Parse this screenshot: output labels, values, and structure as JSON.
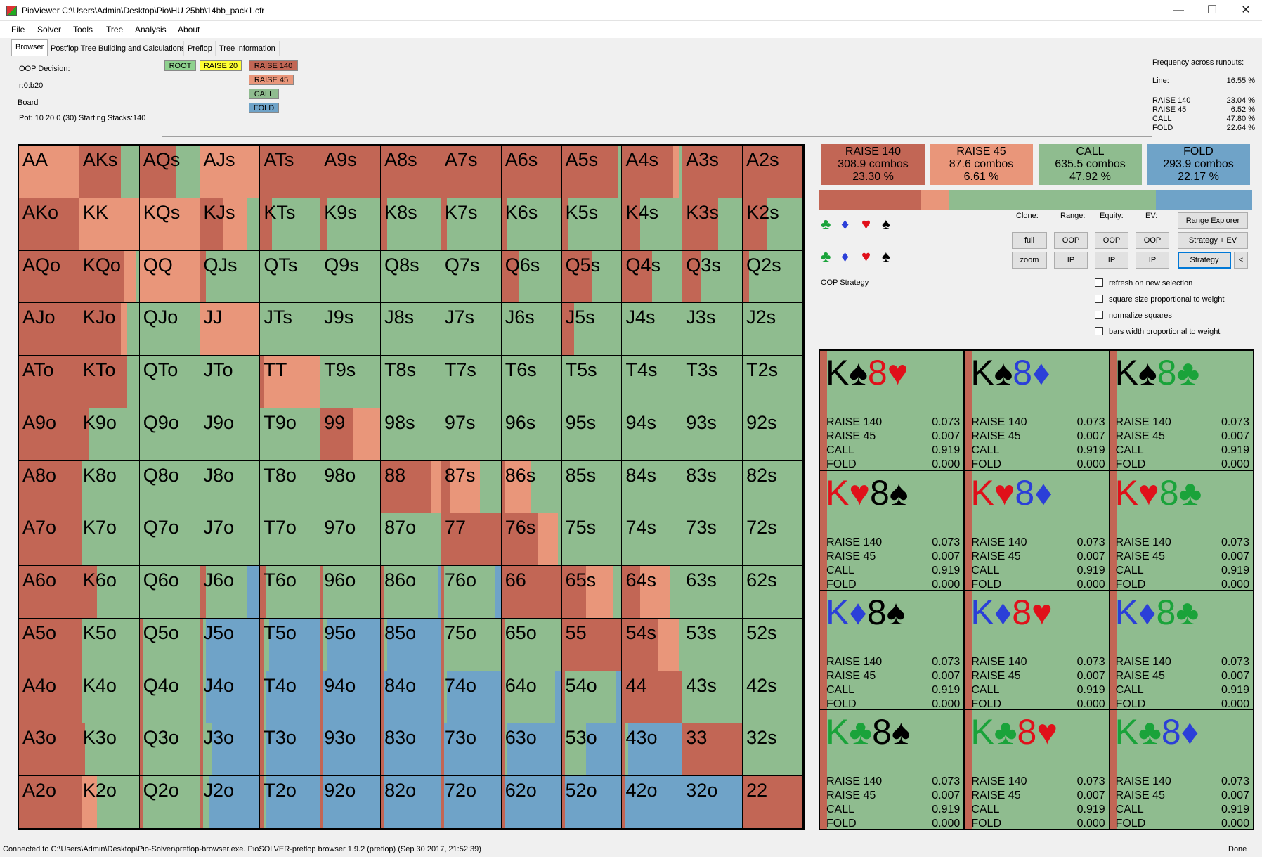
{
  "window": {
    "title": "PioViewer C:\\Users\\Admin\\Desktop\\Pio\\HU 25bb\\14bb_pack1.cfr",
    "minimize": "—",
    "maximize": "☐",
    "close": "✕"
  },
  "menu": [
    "File",
    "Solver",
    "Tools",
    "Tree",
    "Analysis",
    "About"
  ],
  "tabs": [
    "Browser",
    "Postflop Tree Building and Calculations",
    "Preflop",
    "Tree information"
  ],
  "info": {
    "decision": "OOP Decision:",
    "line": "r:0:b20",
    "board": "Board",
    "pot": "Pot: 10 20 0 (30) Starting Stacks:140"
  },
  "tree_nodes": {
    "root": "ROOT",
    "raise20": "RAISE 20",
    "raise140": "RAISE 140",
    "raise45": "RAISE 45",
    "call": "CALL",
    "fold": "FOLD"
  },
  "frequency": {
    "title": "Frequency across runouts:",
    "line_label": "Line:",
    "line_value": "16.55 %",
    "rows": [
      {
        "label": "RAISE 140",
        "value": "23.04 %"
      },
      {
        "label": "RAISE 45",
        "value": "6.52 %"
      },
      {
        "label": "CALL",
        "value": "47.80 %"
      },
      {
        "label": "FOLD",
        "value": "22.64 %"
      }
    ]
  },
  "colors": {
    "raise140": "#c26655",
    "raise45": "#e9967a",
    "call": "#8fbc8f",
    "fold": "#6fa3c8",
    "root_node": "#8fd18f",
    "raise20_node": "#ffff33"
  },
  "actions": [
    {
      "name": "RAISE 140",
      "combos": "308.9 combos",
      "pct": "23.30 %",
      "freq": 23.3,
      "color": "#c26655"
    },
    {
      "name": "RAISE 45",
      "combos": "87.6 combos",
      "pct": "6.61 %",
      "freq": 6.61,
      "color": "#e9967a"
    },
    {
      "name": "CALL",
      "combos": "635.5 combos",
      "pct": "47.92 %",
      "freq": 47.92,
      "color": "#8fbc8f"
    },
    {
      "name": "FOLD",
      "combos": "293.9 combos",
      "pct": "22.17 %",
      "freq": 22.17,
      "color": "#6fa3c8"
    }
  ],
  "controls": {
    "clone": "Clone:",
    "range": "Range:",
    "equity": "Equity:",
    "ev": "EV:",
    "full": "full",
    "zoom": "zoom",
    "oop": "OOP",
    "ip": "IP",
    "range_explorer": "Range Explorer",
    "strategy_ev": "Strategy + EV",
    "strategy": "Strategy",
    "back": "<",
    "oop_strategy": "OOP Strategy",
    "refresh": "refresh on new selection",
    "square_size": "square size proportional to weight",
    "normalize": "normalize squares",
    "bars_width": "bars width proportional to weight"
  },
  "suits": [
    "♣",
    "♦",
    "♥",
    "♠"
  ],
  "suit_colors": [
    "#1aa33a",
    "#2b3fd8",
    "#e0101a",
    "#000000"
  ],
  "hands": [
    "AA",
    "AKs",
    "AQs",
    "AJs",
    "ATs",
    "A9s",
    "A8s",
    "A7s",
    "A6s",
    "A5s",
    "A4s",
    "A3s",
    "A2s",
    "AKo",
    "KK",
    "KQs",
    "KJs",
    "KTs",
    "K9s",
    "K8s",
    "K7s",
    "K6s",
    "K5s",
    "K4s",
    "K3s",
    "K2s",
    "AQo",
    "KQo",
    "QQ",
    "QJs",
    "QTs",
    "Q9s",
    "Q8s",
    "Q7s",
    "Q6s",
    "Q5s",
    "Q4s",
    "Q3s",
    "Q2s",
    "AJo",
    "KJo",
    "QJo",
    "JJ",
    "JTs",
    "J9s",
    "J8s",
    "J7s",
    "J6s",
    "J5s",
    "J4s",
    "J3s",
    "J2s",
    "ATo",
    "KTo",
    "QTo",
    "JTo",
    "TT",
    "T9s",
    "T8s",
    "T7s",
    "T6s",
    "T5s",
    "T4s",
    "T3s",
    "T2s",
    "A9o",
    "K9o",
    "Q9o",
    "J9o",
    "T9o",
    "99",
    "98s",
    "97s",
    "96s",
    "95s",
    "94s",
    "93s",
    "92s",
    "A8o",
    "K8o",
    "Q8o",
    "J8o",
    "T8o",
    "98o",
    "88",
    "87s",
    "86s",
    "85s",
    "84s",
    "83s",
    "82s",
    "A7o",
    "K7o",
    "Q7o",
    "J7o",
    "T7o",
    "97o",
    "87o",
    "77",
    "76s",
    "75s",
    "74s",
    "73s",
    "72s",
    "A6o",
    "K6o",
    "Q6o",
    "J6o",
    "T6o",
    "96o",
    "86o",
    "76o",
    "66",
    "65s",
    "64s",
    "63s",
    "62s",
    "A5o",
    "K5o",
    "Q5o",
    "J5o",
    "T5o",
    "95o",
    "85o",
    "75o",
    "65o",
    "55",
    "54s",
    "53s",
    "52s",
    "A4o",
    "K4o",
    "Q4o",
    "J4o",
    "T4o",
    "94o",
    "84o",
    "74o",
    "64o",
    "54o",
    "44",
    "43s",
    "42s",
    "A3o",
    "K3o",
    "Q3o",
    "J3o",
    "T3o",
    "93o",
    "83o",
    "73o",
    "63o",
    "53o",
    "43o",
    "33",
    "32s",
    "A2o",
    "K2o",
    "Q2o",
    "J2o",
    "T2o",
    "92o",
    "82o",
    "72o",
    "62o",
    "52o",
    "42o",
    "32o",
    "22"
  ],
  "hand_strategies": [
    [
      0,
      100,
      0,
      0
    ],
    [
      70,
      0,
      30,
      0
    ],
    [
      60,
      0,
      40,
      0
    ],
    [
      0,
      100,
      0,
      0
    ],
    [
      100,
      0,
      0,
      0
    ],
    [
      100,
      0,
      0,
      0
    ],
    [
      100,
      0,
      0,
      0
    ],
    [
      100,
      0,
      0,
      0
    ],
    [
      100,
      0,
      0,
      0
    ],
    [
      95,
      0,
      5,
      0
    ],
    [
      85,
      10,
      5,
      0
    ],
    [
      100,
      0,
      0,
      0
    ],
    [
      100,
      0,
      0,
      0
    ],
    [
      100,
      0,
      0,
      0
    ],
    [
      0,
      100,
      0,
      0
    ],
    [
      0,
      100,
      0,
      0
    ],
    [
      40,
      40,
      20,
      0
    ],
    [
      20,
      0,
      80,
      0
    ],
    [
      10,
      0,
      90,
      0
    ],
    [
      10,
      0,
      90,
      0
    ],
    [
      10,
      0,
      90,
      0
    ],
    [
      10,
      0,
      90,
      0
    ],
    [
      10,
      0,
      90,
      0
    ],
    [
      30,
      0,
      70,
      0
    ],
    [
      60,
      0,
      40,
      0
    ],
    [
      40,
      0,
      60,
      0
    ],
    [
      100,
      0,
      0,
      0
    ],
    [
      75,
      20,
      5,
      0
    ],
    [
      0,
      100,
      0,
      0
    ],
    [
      10,
      0,
      90,
      0
    ],
    [
      0,
      0,
      100,
      0
    ],
    [
      0,
      0,
      100,
      0
    ],
    [
      0,
      0,
      100,
      0
    ],
    [
      0,
      0,
      100,
      0
    ],
    [
      30,
      0,
      70,
      0
    ],
    [
      50,
      0,
      50,
      0
    ],
    [
      50,
      0,
      50,
      0
    ],
    [
      30,
      0,
      70,
      0
    ],
    [
      10,
      0,
      90,
      0
    ],
    [
      100,
      0,
      0,
      0
    ],
    [
      70,
      10,
      20,
      0
    ],
    [
      0,
      0,
      100,
      0
    ],
    [
      0,
      100,
      0,
      0
    ],
    [
      0,
      0,
      100,
      0
    ],
    [
      0,
      0,
      100,
      0
    ],
    [
      0,
      0,
      100,
      0
    ],
    [
      0,
      0,
      100,
      0
    ],
    [
      0,
      0,
      100,
      0
    ],
    [
      20,
      0,
      80,
      0
    ],
    [
      0,
      0,
      100,
      0
    ],
    [
      0,
      0,
      100,
      0
    ],
    [
      0,
      0,
      100,
      0
    ],
    [
      100,
      0,
      0,
      0
    ],
    [
      80,
      0,
      20,
      0
    ],
    [
      0,
      0,
      100,
      0
    ],
    [
      0,
      0,
      100,
      0
    ],
    [
      5,
      95,
      0,
      0
    ],
    [
      0,
      0,
      100,
      0
    ],
    [
      0,
      0,
      100,
      0
    ],
    [
      0,
      0,
      100,
      0
    ],
    [
      0,
      0,
      100,
      0
    ],
    [
      0,
      0,
      100,
      0
    ],
    [
      0,
      0,
      100,
      0
    ],
    [
      0,
      0,
      100,
      0
    ],
    [
      0,
      0,
      100,
      0
    ],
    [
      100,
      0,
      0,
      0
    ],
    [
      15,
      0,
      85,
      0
    ],
    [
      0,
      0,
      100,
      0
    ],
    [
      0,
      0,
      100,
      0
    ],
    [
      0,
      0,
      100,
      0
    ],
    [
      55,
      45,
      0,
      0
    ],
    [
      0,
      0,
      100,
      0
    ],
    [
      0,
      0,
      100,
      0
    ],
    [
      0,
      0,
      100,
      0
    ],
    [
      0,
      0,
      100,
      0
    ],
    [
      0,
      0,
      100,
      0
    ],
    [
      0,
      0,
      100,
      0
    ],
    [
      0,
      0,
      100,
      0
    ],
    [
      100,
      0,
      0,
      0
    ],
    [
      5,
      0,
      95,
      0
    ],
    [
      0,
      0,
      100,
      0
    ],
    [
      0,
      0,
      100,
      0
    ],
    [
      0,
      0,
      100,
      0
    ],
    [
      0,
      0,
      100,
      0
    ],
    [
      85,
      15,
      0,
      0
    ],
    [
      15,
      50,
      35,
      0
    ],
    [
      5,
      45,
      50,
      0
    ],
    [
      0,
      0,
      100,
      0
    ],
    [
      0,
      0,
      100,
      0
    ],
    [
      0,
      0,
      100,
      0
    ],
    [
      0,
      0,
      100,
      0
    ],
    [
      100,
      0,
      0,
      0
    ],
    [
      5,
      0,
      95,
      0
    ],
    [
      0,
      0,
      100,
      0
    ],
    [
      0,
      0,
      100,
      0
    ],
    [
      0,
      0,
      100,
      0
    ],
    [
      0,
      0,
      100,
      0
    ],
    [
      0,
      0,
      100,
      0
    ],
    [
      100,
      0,
      0,
      0
    ],
    [
      60,
      35,
      5,
      0
    ],
    [
      0,
      0,
      100,
      0
    ],
    [
      0,
      0,
      100,
      0
    ],
    [
      0,
      0,
      100,
      0
    ],
    [
      0,
      0,
      100,
      0
    ],
    [
      100,
      0,
      0,
      0
    ],
    [
      30,
      0,
      70,
      0
    ],
    [
      0,
      0,
      100,
      0
    ],
    [
      10,
      0,
      70,
      20
    ],
    [
      10,
      0,
      90,
      0
    ],
    [
      5,
      0,
      95,
      0
    ],
    [
      5,
      0,
      90,
      5
    ],
    [
      5,
      0,
      85,
      10
    ],
    [
      100,
      0,
      0,
      0
    ],
    [
      40,
      45,
      15,
      0
    ],
    [
      30,
      50,
      20,
      0
    ],
    [
      0,
      0,
      100,
      0
    ],
    [
      0,
      0,
      100,
      0
    ],
    [
      100,
      0,
      0,
      0
    ],
    [
      5,
      0,
      95,
      0
    ],
    [
      5,
      0,
      95,
      0
    ],
    [
      5,
      0,
      5,
      90
    ],
    [
      5,
      0,
      10,
      85
    ],
    [
      5,
      0,
      5,
      90
    ],
    [
      5,
      0,
      5,
      90
    ],
    [
      5,
      0,
      95,
      0
    ],
    [
      5,
      0,
      95,
      0
    ],
    [
      100,
      0,
      0,
      0
    ],
    [
      60,
      35,
      5,
      0
    ],
    [
      0,
      0,
      100,
      0
    ],
    [
      0,
      0,
      100,
      0
    ],
    [
      100,
      0,
      0,
      0
    ],
    [
      5,
      0,
      95,
      0
    ],
    [
      5,
      0,
      95,
      0
    ],
    [
      5,
      0,
      5,
      90
    ],
    [
      5,
      0,
      5,
      90
    ],
    [
      5,
      0,
      0,
      95
    ],
    [
      5,
      0,
      0,
      95
    ],
    [
      5,
      0,
      5,
      90
    ],
    [
      5,
      0,
      85,
      10
    ],
    [
      5,
      0,
      85,
      10
    ],
    [
      100,
      0,
      0,
      0
    ],
    [
      0,
      0,
      100,
      0
    ],
    [
      0,
      0,
      100,
      0
    ],
    [
      100,
      0,
      0,
      0
    ],
    [
      10,
      0,
      90,
      0
    ],
    [
      5,
      0,
      95,
      0
    ],
    [
      5,
      0,
      15,
      80
    ],
    [
      5,
      0,
      5,
      90
    ],
    [
      5,
      0,
      0,
      95
    ],
    [
      5,
      0,
      0,
      95
    ],
    [
      5,
      0,
      0,
      95
    ],
    [
      5,
      0,
      5,
      90
    ],
    [
      5,
      0,
      35,
      60
    ],
    [
      5,
      0,
      5,
      90
    ],
    [
      100,
      0,
      0,
      0
    ],
    [
      0,
      0,
      100,
      0
    ],
    [
      100,
      0,
      0,
      0
    ],
    [
      5,
      25,
      70,
      0
    ],
    [
      5,
      0,
      95,
      0
    ],
    [
      5,
      0,
      10,
      85
    ],
    [
      5,
      0,
      5,
      90
    ],
    [
      5,
      0,
      0,
      95
    ],
    [
      5,
      0,
      0,
      95
    ],
    [
      5,
      0,
      0,
      95
    ],
    [
      5,
      0,
      0,
      95
    ],
    [
      5,
      0,
      0,
      95
    ],
    [
      5,
      0,
      0,
      95
    ],
    [
      0,
      0,
      0,
      100
    ],
    [
      100,
      0,
      0,
      0
    ]
  ],
  "combos": [
    {
      "rank1": "K",
      "s1": 3,
      "rank2": "8",
      "s2": 2
    },
    {
      "rank1": "K",
      "s1": 3,
      "rank2": "8",
      "s2": 1
    },
    {
      "rank1": "K",
      "s1": 3,
      "rank2": "8",
      "s2": 0
    },
    {
      "rank1": "K",
      "s1": 2,
      "rank2": "8",
      "s2": 3
    },
    {
      "rank1": "K",
      "s1": 2,
      "rank2": "8",
      "s2": 1
    },
    {
      "rank1": "K",
      "s1": 2,
      "rank2": "8",
      "s2": 0
    },
    {
      "rank1": "K",
      "s1": 1,
      "rank2": "8",
      "s2": 3
    },
    {
      "rank1": "K",
      "s1": 1,
      "rank2": "8",
      "s2": 2
    },
    {
      "rank1": "K",
      "s1": 1,
      "rank2": "8",
      "s2": 0
    },
    {
      "rank1": "K",
      "s1": 0,
      "rank2": "8",
      "s2": 3
    },
    {
      "rank1": "K",
      "s1": 0,
      "rank2": "8",
      "s2": 2
    },
    {
      "rank1": "K",
      "s1": 0,
      "rank2": "8",
      "s2": 1
    }
  ],
  "combo_lines": [
    {
      "label": "RAISE 140",
      "value": "0.073"
    },
    {
      "label": "RAISE 45",
      "value": "0.007"
    },
    {
      "label": "CALL",
      "value": "0.919"
    },
    {
      "label": "FOLD",
      "value": "0.000"
    }
  ],
  "status": {
    "text": "Connected to C:\\Users\\Admin\\Desktop\\Pio-Solver\\preflop-browser.exe. PioSOLVER-preflop browser 1.9.2 (preflop) (Sep 30 2017, 21:52:39)",
    "done": "Done"
  }
}
